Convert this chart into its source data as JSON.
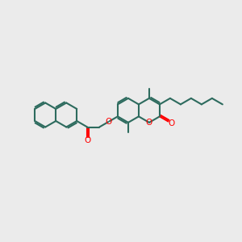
{
  "bg_color": "#ebebeb",
  "bond_color": "#2d6b5e",
  "oxygen_color": "#ff0000",
  "bond_width": 1.5,
  "dbo": 0.05,
  "figsize": [
    3.0,
    3.0
  ],
  "dpi": 100,
  "xlim": [
    -4.2,
    3.8
  ],
  "ylim": [
    -1.6,
    1.6
  ]
}
